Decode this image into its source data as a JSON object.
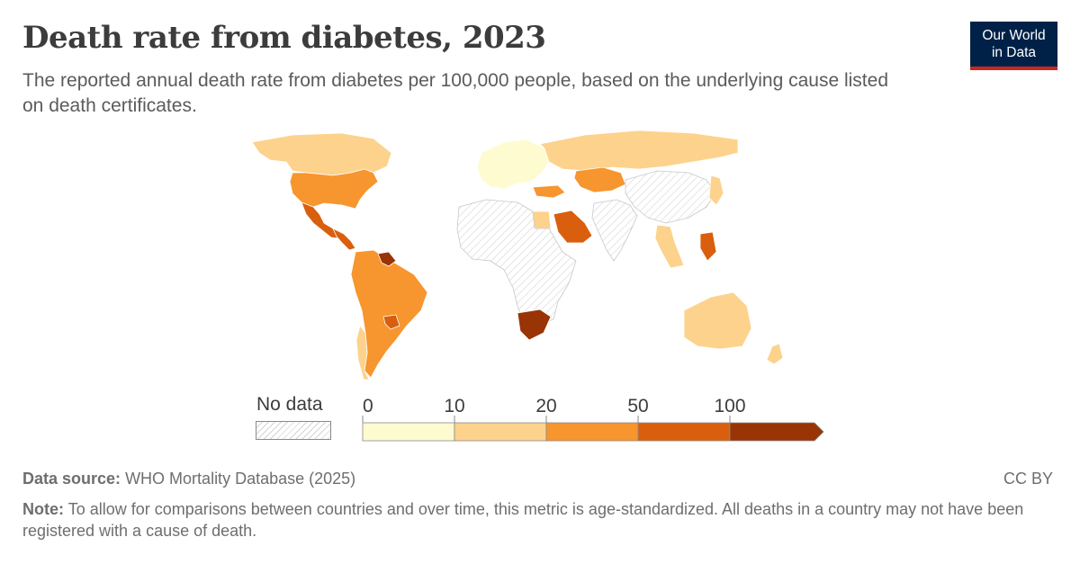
{
  "header": {
    "title": "Death rate from diabetes, 2023",
    "subtitle": "The reported annual death rate from diabetes per 100,000 people, based on the underlying cause listed on death certificates."
  },
  "logo": {
    "line1": "Our World",
    "line2": "in Data"
  },
  "legend": {
    "no_data_label": "No data",
    "ticks": [
      "0",
      "10",
      "20",
      "50",
      "100"
    ],
    "bins": [
      {
        "from": 0,
        "to": 10,
        "color": "#fefbd0"
      },
      {
        "from": 10,
        "to": 20,
        "color": "#fdd28c"
      },
      {
        "from": 20,
        "to": 50,
        "color": "#f7952e"
      },
      {
        "from": 50,
        "to": 100,
        "color": "#d95f0e"
      },
      {
        "from": 100,
        "to": null,
        "color": "#993404"
      }
    ],
    "no_data_color": "hatched-grey"
  },
  "footer": {
    "source_label": "Data source:",
    "source_text": "WHO Mortality Database (2025)",
    "license": "CC BY",
    "note_label": "Note:",
    "note_text": "To allow for comparisons between countries and over time, this metric is age-standardized. All deaths in a country may not have been registered with a cause of death."
  },
  "map_regions": [
    {
      "name": "North America",
      "bin": 1
    },
    {
      "name": "United States",
      "bin": 2
    },
    {
      "name": "Mexico",
      "bin": 3
    },
    {
      "name": "Central America",
      "bin": 3
    },
    {
      "name": "South America",
      "bin": 2
    },
    {
      "name": "Venezuela",
      "bin": 4
    },
    {
      "name": "Paraguay",
      "bin": 3
    },
    {
      "name": "Chile",
      "bin": 1
    },
    {
      "name": "Europe",
      "bin": 0
    },
    {
      "name": "Russia",
      "bin": 1
    },
    {
      "name": "Kazakhstan",
      "bin": 2
    },
    {
      "name": "Turkey",
      "bin": 2
    },
    {
      "name": "Egypt",
      "bin": 1
    },
    {
      "name": "Saudi Arabia",
      "bin": 3
    },
    {
      "name": "Africa",
      "bin": -1
    },
    {
      "name": "South Africa",
      "bin": 4
    },
    {
      "name": "South Asia",
      "bin": -1
    },
    {
      "name": "China",
      "bin": -1
    },
    {
      "name": "Southeast Asia",
      "bin": 1
    },
    {
      "name": "Philippines",
      "bin": 3
    },
    {
      "name": "Japan",
      "bin": 1
    },
    {
      "name": "Australia",
      "bin": 1
    },
    {
      "name": "New Zealand",
      "bin": 1
    }
  ]
}
